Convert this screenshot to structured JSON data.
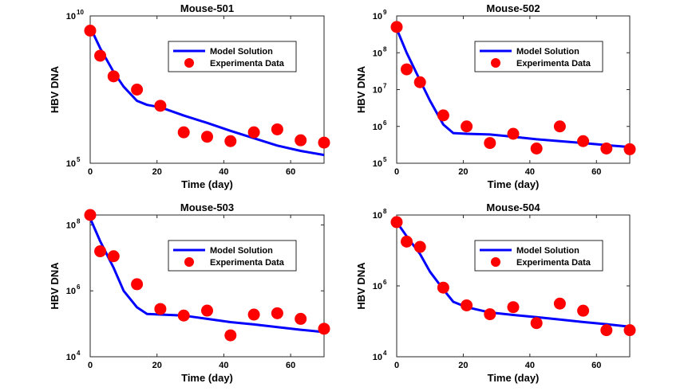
{
  "chart_data": [
    {
      "type": "scatter",
      "title": "Mouse-501",
      "xlabel": "Time (day)",
      "ylabel": "HBV DNA",
      "xlim": [
        0,
        70
      ],
      "ylim_log10": [
        5,
        10
      ],
      "yscale": "log",
      "xticks": [
        0,
        20,
        40,
        60
      ],
      "yticks": [
        {
          "base": "10",
          "exp": "5",
          "log": 5
        },
        {
          "base": "10",
          "exp": "10",
          "log": 10
        }
      ],
      "legend": [
        "Model Solution",
        "Experimenta Data"
      ],
      "legend_position": "top-right",
      "series": [
        {
          "name": "Model Solution",
          "kind": "line",
          "color": "#0000ff",
          "x": [
            0,
            3,
            7,
            10,
            14,
            17,
            21,
            28,
            35,
            42,
            49,
            56,
            63,
            70
          ],
          "y_log10": [
            9.62,
            8.9,
            8.1,
            7.6,
            7.12,
            6.98,
            6.9,
            6.62,
            6.37,
            6.1,
            5.85,
            5.6,
            5.42,
            5.28
          ]
        },
        {
          "name": "Experimenta Data",
          "kind": "points",
          "color": "#ff0000",
          "x": [
            0,
            3,
            7,
            14,
            21,
            28,
            35,
            42,
            49,
            56,
            63,
            70
          ],
          "y_log10": [
            9.5,
            8.65,
            7.95,
            7.5,
            6.95,
            6.05,
            5.9,
            5.75,
            6.05,
            6.15,
            5.78,
            5.7
          ]
        }
      ]
    },
    {
      "type": "scatter",
      "title": "Mouse-502",
      "xlabel": "Time (day)",
      "ylabel": "HBV DNA",
      "xlim": [
        0,
        70
      ],
      "ylim_log10": [
        5,
        9
      ],
      "yscale": "log",
      "xticks": [
        0,
        20,
        40,
        60
      ],
      "yticks": [
        {
          "base": "10",
          "exp": "5",
          "log": 5
        },
        {
          "base": "10",
          "exp": "6",
          "log": 6
        },
        {
          "base": "10",
          "exp": "7",
          "log": 7
        },
        {
          "base": "10",
          "exp": "8",
          "log": 8
        },
        {
          "base": "10",
          "exp": "9",
          "log": 9
        }
      ],
      "legend": [
        "Model Solution",
        "Experimenta Data"
      ],
      "legend_position": "top-right",
      "series": [
        {
          "name": "Model Solution",
          "kind": "line",
          "color": "#0000ff",
          "x": [
            0,
            3,
            7,
            10,
            14,
            17,
            21,
            28,
            35,
            42,
            49,
            56,
            63,
            70
          ],
          "y_log10": [
            8.65,
            8.0,
            7.25,
            6.7,
            6.05,
            5.82,
            5.8,
            5.78,
            5.72,
            5.65,
            5.6,
            5.55,
            5.49,
            5.44
          ]
        },
        {
          "name": "Experimenta Data",
          "kind": "points",
          "color": "#ff0000",
          "x": [
            0,
            3,
            7,
            14,
            21,
            28,
            35,
            42,
            49,
            56,
            63,
            70
          ],
          "y_log10": [
            8.7,
            7.55,
            7.2,
            6.3,
            6.0,
            5.55,
            5.8,
            5.4,
            6.0,
            5.6,
            5.4,
            5.38
          ]
        }
      ]
    },
    {
      "type": "scatter",
      "title": "Mouse-503",
      "xlabel": "Time (day)",
      "ylabel": "HBV DNA",
      "xlim": [
        0,
        70
      ],
      "ylim_log10": [
        4,
        8.3
      ],
      "yscale": "log",
      "xticks": [
        0,
        20,
        40,
        60
      ],
      "yticks": [
        {
          "base": "10",
          "exp": "4",
          "log": 4
        },
        {
          "base": "10",
          "exp": "6",
          "log": 6
        },
        {
          "base": "10",
          "exp": "8",
          "log": 8
        }
      ],
      "legend": [
        "Model Solution",
        "Experimenta Data"
      ],
      "legend_position": "top-right",
      "series": [
        {
          "name": "Model Solution",
          "kind": "line",
          "color": "#0000ff",
          "x": [
            0,
            3,
            7,
            10,
            14,
            17,
            21,
            28,
            35,
            42,
            49,
            56,
            63,
            70
          ],
          "y_log10": [
            8.2,
            7.5,
            6.7,
            6.0,
            5.5,
            5.3,
            5.28,
            5.25,
            5.15,
            5.05,
            4.98,
            4.9,
            4.82,
            4.75
          ]
        },
        {
          "name": "Experimenta Data",
          "kind": "points",
          "color": "#ff0000",
          "x": [
            0,
            3,
            7,
            14,
            21,
            28,
            35,
            42,
            49,
            56,
            63,
            70
          ],
          "y_log10": [
            8.3,
            7.2,
            7.05,
            6.2,
            5.45,
            5.25,
            5.4,
            4.65,
            5.28,
            5.32,
            5.15,
            4.85
          ]
        }
      ]
    },
    {
      "type": "scatter",
      "title": "Mouse-504",
      "xlabel": "Time (day)",
      "ylabel": "HBV DNA",
      "xlim": [
        0,
        70
      ],
      "ylim_log10": [
        4,
        8
      ],
      "yscale": "log",
      "xticks": [
        0,
        20,
        40,
        60
      ],
      "yticks": [
        {
          "base": "10",
          "exp": "4",
          "log": 4
        },
        {
          "base": "10",
          "exp": "6",
          "log": 6
        },
        {
          "base": "10",
          "exp": "8",
          "log": 8
        }
      ],
      "legend": [
        "Model Solution",
        "Experimenta Data"
      ],
      "legend_position": "top-right",
      "series": [
        {
          "name": "Model Solution",
          "kind": "line",
          "color": "#0000ff",
          "x": [
            0,
            3,
            7,
            10,
            14,
            17,
            21,
            28,
            35,
            42,
            49,
            56,
            63,
            70
          ],
          "y_log10": [
            7.8,
            7.4,
            6.9,
            6.4,
            5.9,
            5.55,
            5.4,
            5.25,
            5.18,
            5.12,
            5.05,
            4.98,
            4.92,
            4.85
          ]
        },
        {
          "name": "Experimenta Data",
          "kind": "points",
          "color": "#ff0000",
          "x": [
            0,
            3,
            7,
            14,
            21,
            28,
            35,
            42,
            49,
            56,
            63,
            70
          ],
          "y_log10": [
            7.8,
            7.25,
            7.1,
            5.95,
            5.45,
            5.2,
            5.4,
            4.95,
            5.5,
            5.3,
            4.75,
            4.75
          ]
        }
      ]
    }
  ]
}
